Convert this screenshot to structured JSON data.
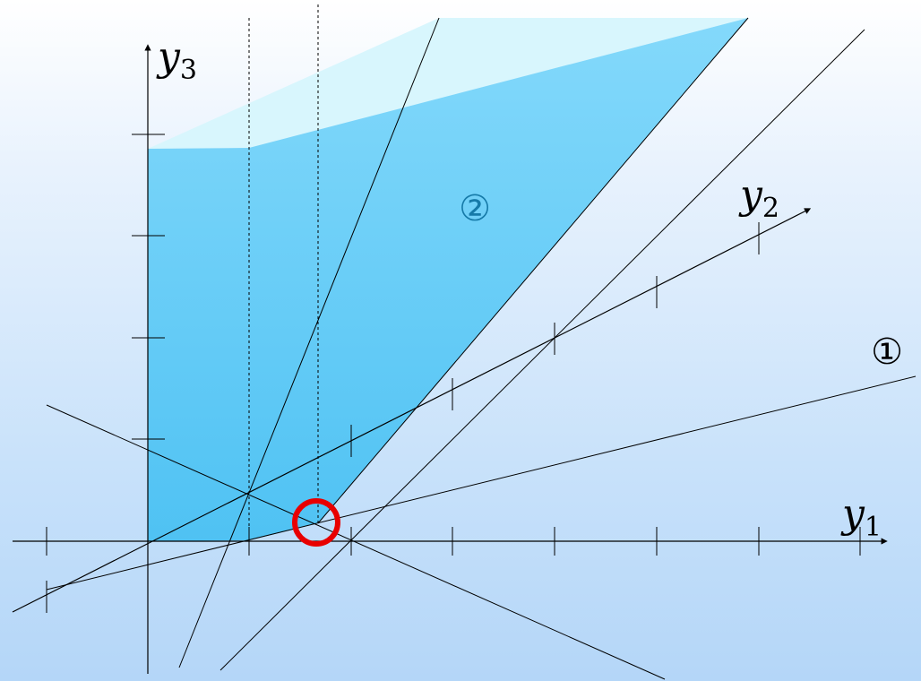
{
  "axes": {
    "y1": {
      "letter": "y",
      "subscript": "1"
    },
    "y2": {
      "letter": "y",
      "subscript": "2"
    },
    "y3": {
      "letter": "y",
      "subscript": "3"
    }
  },
  "labels": {
    "line1": "①",
    "region2": "②"
  },
  "colors": {
    "region_fill_top": "#84d9fb",
    "region_fill_bottom": "#4fc2f3",
    "region_top_face": "#d8f6fd",
    "region_label": "#167aa8",
    "line": "#000000",
    "highlight": "#e80000"
  }
}
